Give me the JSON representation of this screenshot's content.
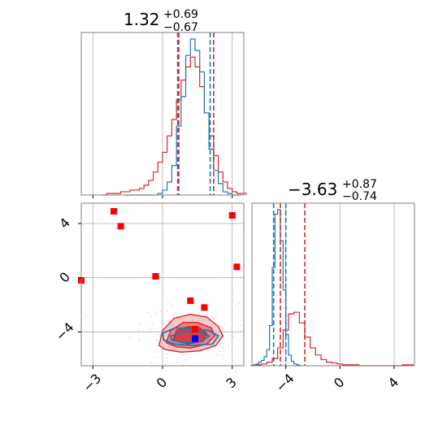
{
  "chart_data": {
    "type": "corner",
    "colors": {
      "blue": "#1f77b4",
      "red": "#d62728",
      "grid": "#b0b0b0",
      "marker_red": "#ff0000",
      "marker_blue": "#0000ff"
    },
    "param_x_range": [
      -3.5,
      3.5
    ],
    "param_y_range": [
      -6.5,
      5.5
    ],
    "titles": [
      {
        "value": "1.32",
        "upper": "+0.69",
        "lower": "−0.67"
      },
      {
        "value": "−3.63",
        "upper": "+0.87",
        "lower": "−0.74"
      }
    ],
    "x_ticks_param1": [
      -3,
      0,
      3
    ],
    "x_tick_labels_param1": [
      "−3",
      "0",
      "3"
    ],
    "y_ticks_param2": [
      4,
      0,
      -4
    ],
    "y_tick_labels_param2": [
      "4",
      "0",
      "−4"
    ],
    "x_ticks_param2": [
      -4,
      0,
      4
    ],
    "x_tick_labels_param2": [
      "−4",
      "0",
      "4"
    ],
    "marginal_1_quantiles": {
      "blue": [
        0.65,
        2.05
      ],
      "red": [
        0.7,
        2.2
      ]
    },
    "marginal_2_quantiles": {
      "blue": [
        -4.9,
        -4.0
      ],
      "red": [
        -4.4,
        -2.6
      ]
    },
    "marginal_1_series": {
      "blue": {
        "centers": [
          -1.5,
          -1.3,
          -1.1,
          -0.9,
          -0.7,
          -0.5,
          -0.3,
          -0.1,
          0.1,
          0.3,
          0.5,
          0.7,
          0.9,
          1.1,
          1.3,
          1.5,
          1.7,
          1.9,
          2.1,
          2.3,
          2.5,
          2.7,
          2.9,
          3.1,
          3.3
        ],
        "counts": [
          0,
          0,
          0,
          0,
          0,
          0,
          0,
          1,
          3,
          8,
          18,
          42,
          60,
          85,
          95,
          88,
          75,
          50,
          28,
          15,
          7,
          2,
          1,
          0,
          0
        ]
      },
      "red": {
        "centers": [
          -2.5,
          -2.3,
          -2.1,
          -1.9,
          -1.7,
          -1.5,
          -1.3,
          -1.1,
          -0.9,
          -0.7,
          -0.5,
          -0.3,
          -0.1,
          0.1,
          0.3,
          0.5,
          0.7,
          0.9,
          1.1,
          1.3,
          1.5,
          1.7,
          1.9,
          2.1,
          2.3,
          2.5,
          2.7,
          2.9,
          3.1,
          3.3,
          3.5
        ],
        "counts": [
          0,
          1,
          1,
          1,
          2,
          2,
          3,
          3,
          4,
          6,
          9,
          14,
          20,
          26,
          36,
          46,
          58,
          70,
          78,
          84,
          78,
          66,
          50,
          36,
          24,
          14,
          8,
          4,
          2,
          1,
          1
        ]
      }
    },
    "marginal_2_series": {
      "blue": {
        "centers": [
          -6.5,
          -6.3,
          -6.1,
          -5.9,
          -5.7,
          -5.5,
          -5.3,
          -5.1,
          -4.9,
          -4.7,
          -4.5,
          -4.3,
          -4.1,
          -3.9,
          -3.7,
          -3.5,
          -3.3,
          -3.1,
          -2.9
        ],
        "counts": [
          0,
          1,
          2,
          4,
          6,
          10,
          18,
          45,
          110,
          170,
          175,
          140,
          85,
          35,
          12,
          5,
          2,
          1,
          0
        ]
      },
      "red": {
        "centers": [
          -6.0,
          -5.6,
          -5.2,
          -4.8,
          -4.4,
          -4.0,
          -3.6,
          -3.2,
          -2.8,
          -2.4,
          -2.0,
          -1.6,
          -1.2,
          -0.8,
          -0.4,
          0.0,
          0.4,
          0.8,
          1.2,
          1.6,
          2.0,
          2.4,
          2.8,
          3.2,
          3.6,
          4.0,
          4.4,
          4.8,
          5.2
        ],
        "counts": [
          1,
          2,
          4,
          8,
          20,
          40,
          58,
          60,
          48,
          32,
          20,
          12,
          7,
          4,
          3,
          2,
          1,
          1,
          1,
          0,
          0,
          0,
          0,
          0,
          0,
          0,
          0,
          1,
          1
        ]
      }
    },
    "red_contours": [
      [
        [
          -0.15,
          -5.0
        ],
        [
          0.0,
          -3.9
        ],
        [
          0.5,
          -3.0
        ],
        [
          1.2,
          -2.7
        ],
        [
          1.9,
          -2.9
        ],
        [
          2.4,
          -3.6
        ],
        [
          2.6,
          -4.3
        ],
        [
          2.3,
          -5.0
        ],
        [
          1.6,
          -5.4
        ],
        [
          0.8,
          -5.5
        ],
        [
          0.1,
          -5.3
        ]
      ],
      [
        [
          0.15,
          -4.8
        ],
        [
          0.35,
          -3.9
        ],
        [
          0.9,
          -3.3
        ],
        [
          1.5,
          -3.3
        ],
        [
          2.1,
          -3.7
        ],
        [
          2.25,
          -4.3
        ],
        [
          1.9,
          -4.9
        ],
        [
          1.2,
          -5.2
        ],
        [
          0.6,
          -5.1
        ]
      ],
      [
        [
          0.45,
          -4.6
        ],
        [
          0.6,
          -3.9
        ],
        [
          1.1,
          -3.6
        ],
        [
          1.6,
          -3.7
        ],
        [
          1.9,
          -4.1
        ],
        [
          1.75,
          -4.7
        ],
        [
          1.1,
          -4.9
        ]
      ]
    ],
    "blue_contours": [
      [
        [
          0.0,
          -4.1
        ],
        [
          0.55,
          -3.7
        ],
        [
          1.3,
          -3.8
        ],
        [
          2.0,
          -3.9
        ],
        [
          2.4,
          -4.3
        ],
        [
          2.15,
          -4.9
        ],
        [
          1.3,
          -5.0
        ],
        [
          0.5,
          -4.9
        ],
        [
          0.05,
          -4.6
        ]
      ],
      [
        [
          0.35,
          -4.3
        ],
        [
          0.9,
          -4.0
        ],
        [
          1.6,
          -4.0
        ],
        [
          2.0,
          -4.3
        ],
        [
          1.7,
          -4.7
        ],
        [
          0.9,
          -4.8
        ],
        [
          0.4,
          -4.6
        ]
      ]
    ],
    "red_markers": [
      [
        -2.1,
        4.9
      ],
      [
        -1.8,
        3.8
      ],
      [
        3.0,
        4.6
      ],
      [
        3.2,
        0.8
      ],
      [
        -3.5,
        -0.2
      ],
      [
        -0.3,
        0.1
      ],
      [
        1.2,
        -1.7
      ],
      [
        1.8,
        -2.2
      ],
      [
        1.4,
        -3.8
      ]
    ],
    "blue_markers": [
      [
        1.4,
        -4.5
      ]
    ]
  }
}
